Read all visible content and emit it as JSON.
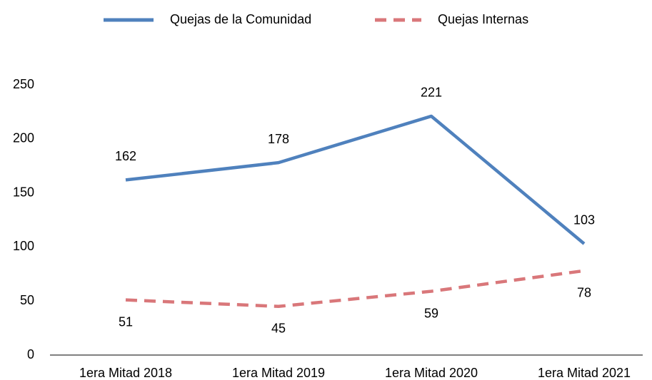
{
  "chart_data": {
    "type": "line",
    "categories": [
      "1era Mitad 2018",
      "1era Mitad 2019",
      "1era Mitad 2020",
      "1era Mitad 2021"
    ],
    "series": [
      {
        "name": "Quejas de la Comunidad",
        "color": "#4f81bd",
        "dash": false,
        "values": [
          162,
          178,
          221,
          103
        ]
      },
      {
        "name": "Quejas Internas",
        "color": "#d9777a",
        "dash": true,
        "values": [
          51,
          45,
          59,
          78
        ]
      }
    ],
    "ylim": [
      0,
      250
    ],
    "yticks": [
      0,
      50,
      100,
      150,
      200,
      250
    ],
    "grid": false,
    "legend": "top"
  }
}
